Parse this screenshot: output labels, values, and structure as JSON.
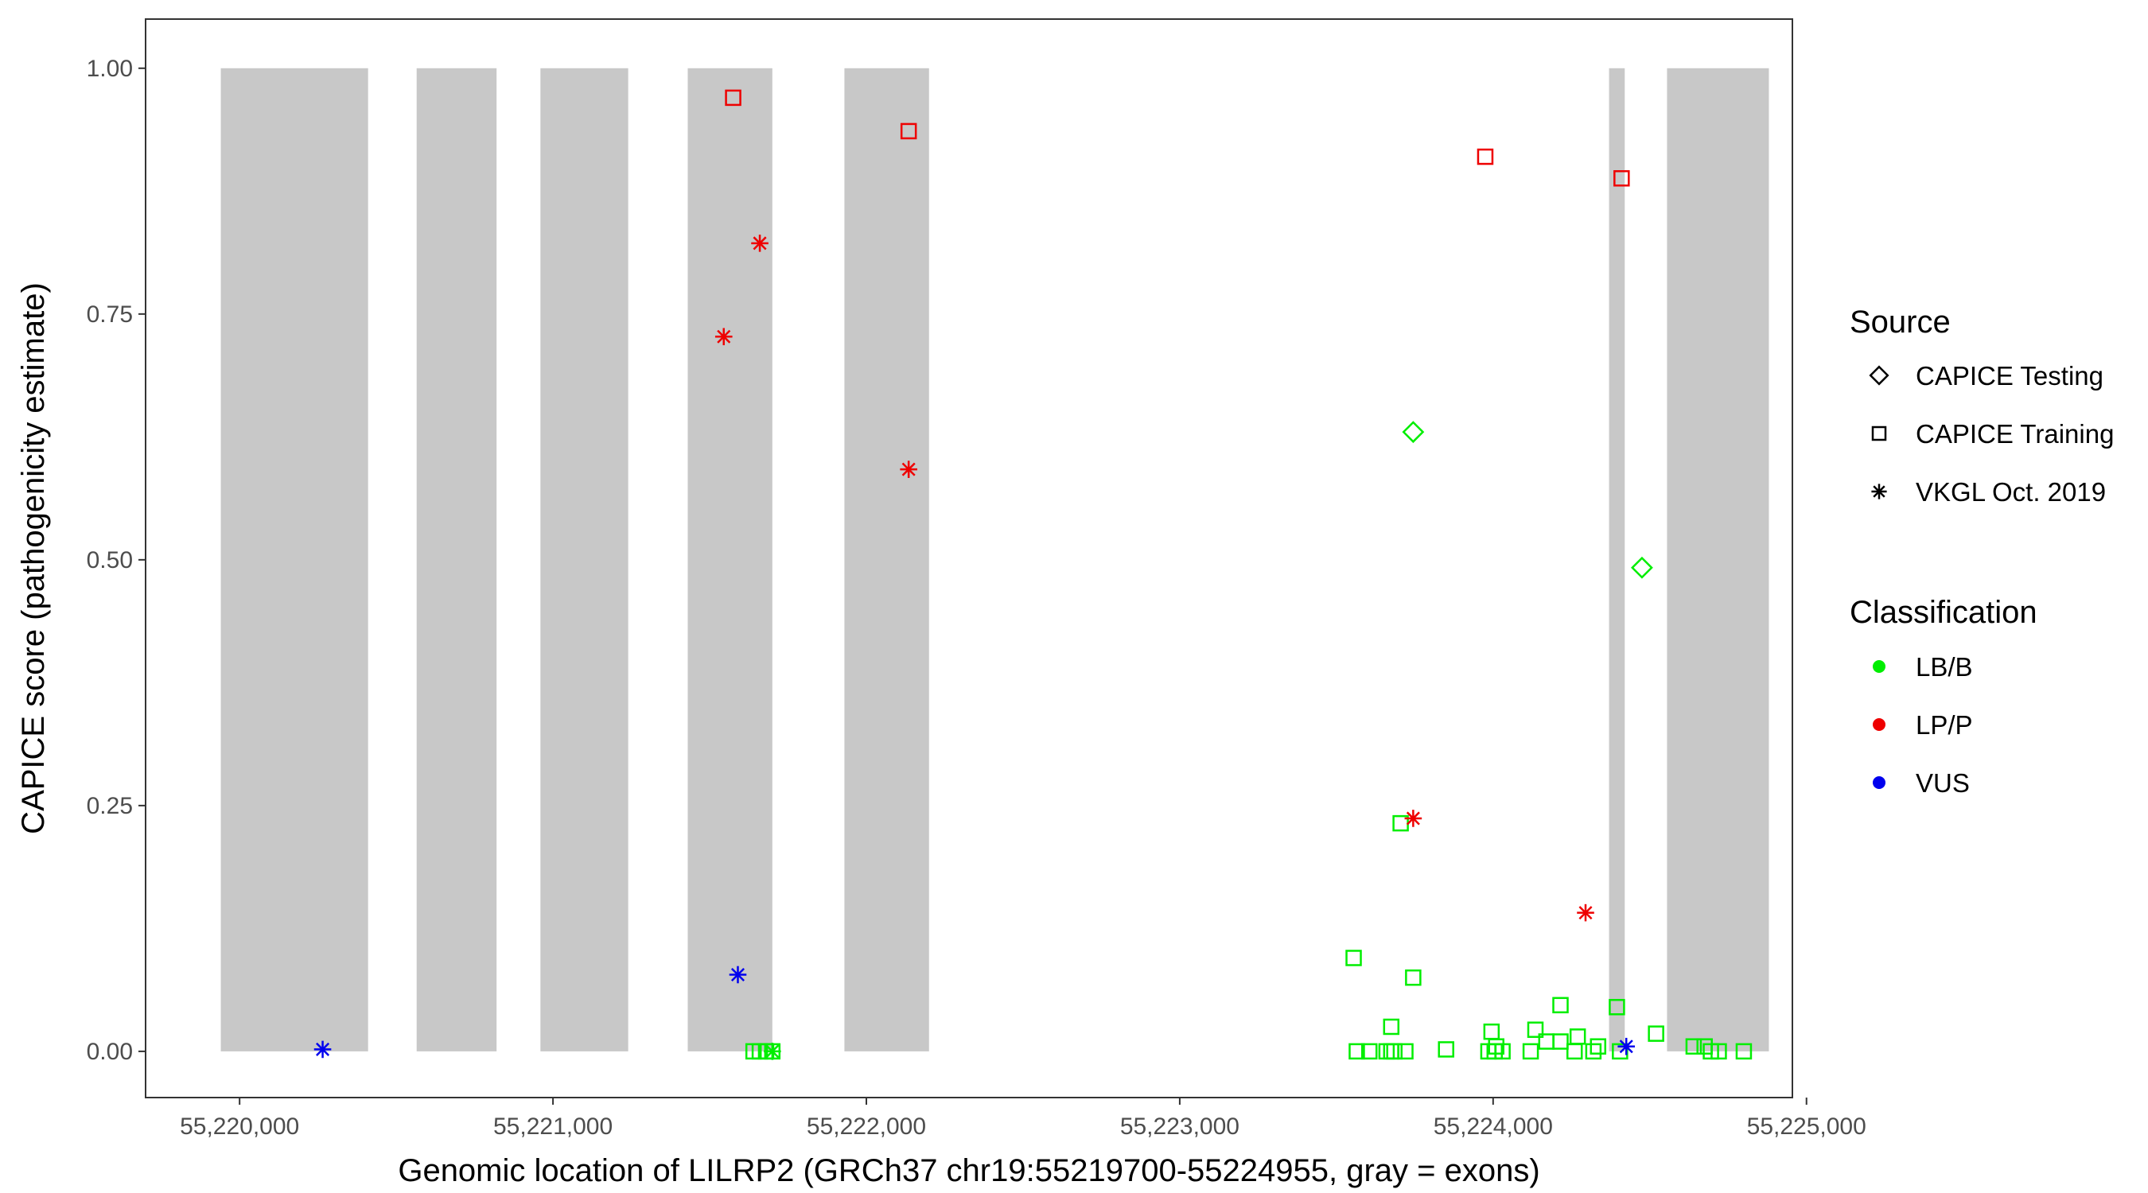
{
  "chart_data": {
    "type": "scatter",
    "xlabel": "Genomic location of LILRP2 (GRCh37 chr19:55219700-55224955, gray = exons)",
    "ylabel": "CAPICE score (pathogenicity estimate)",
    "xlim": [
      55219700,
      55224955
    ],
    "ylim": [
      -0.047,
      1.05
    ],
    "x_ticks": [
      55220000,
      55221000,
      55222000,
      55223000,
      55224000,
      55225000
    ],
    "x_tick_labels": [
      "55,220,000",
      "55,221,000",
      "55,222,000",
      "55,223,000",
      "55,224,000",
      "55,225,000"
    ],
    "y_ticks": [
      0,
      0.25,
      0.5,
      0.75,
      1.0
    ],
    "y_tick_labels": [
      "0.00",
      "0.25",
      "0.50",
      "0.75",
      "1.00"
    ],
    "grid": false,
    "exons": [
      [
        55219940,
        55220410
      ],
      [
        55220565,
        55220820
      ],
      [
        55220960,
        55221240
      ],
      [
        55221430,
        55221700
      ],
      [
        55221930,
        55222200
      ],
      [
        55224370,
        55224420
      ],
      [
        55224555,
        55224880
      ]
    ],
    "legend": {
      "position": "right",
      "source": {
        "title": "Source",
        "items": [
          {
            "label": "CAPICE Testing",
            "shape": "diamond"
          },
          {
            "label": "CAPICE Training",
            "shape": "square"
          },
          {
            "label": "VKGL Oct. 2019",
            "shape": "asterisk"
          }
        ]
      },
      "classification": {
        "title": "Classification",
        "items": [
          {
            "label": "LB/B",
            "color": "#00ee00"
          },
          {
            "label": "LP/P",
            "color": "#ee0000"
          },
          {
            "label": "VUS",
            "color": "#0000ee"
          }
        ]
      }
    },
    "colors": {
      "LB/B": "#00ee00",
      "LP/P": "#ee0000",
      "VUS": "#0000ee",
      "exon": "#c8c8c8"
    },
    "series": [
      {
        "source": "CAPICE Testing",
        "classification": "LB/B",
        "points": [
          [
            55223745,
            0.63
          ],
          [
            55224475,
            0.492
          ]
        ]
      },
      {
        "source": "CAPICE Training",
        "classification": "LP/P",
        "points": [
          [
            55221575,
            0.97
          ],
          [
            55222135,
            0.936
          ],
          [
            55223975,
            0.91
          ],
          [
            55224410,
            0.888
          ]
        ]
      },
      {
        "source": "CAPICE Training",
        "classification": "LB/B",
        "points": [
          [
            55221640,
            0.0
          ],
          [
            55221660,
            0.0
          ],
          [
            55221680,
            0.0
          ],
          [
            55221700,
            0.0
          ],
          [
            55223705,
            0.232
          ],
          [
            55223555,
            0.095
          ],
          [
            55223745,
            0.075
          ],
          [
            55223565,
            0.0
          ],
          [
            55223605,
            0.0
          ],
          [
            55223660,
            0.0
          ],
          [
            55223675,
            0.0
          ],
          [
            55223685,
            0.0
          ],
          [
            55223720,
            0.0
          ],
          [
            55223675,
            0.025
          ],
          [
            55223850,
            0.002
          ],
          [
            55223985,
            0.0
          ],
          [
            55224005,
            0.0
          ],
          [
            55224030,
            0.0
          ],
          [
            55223995,
            0.02
          ],
          [
            55224010,
            0.005
          ],
          [
            55224120,
            0.0
          ],
          [
            55224135,
            0.022
          ],
          [
            55224170,
            0.01
          ],
          [
            55224215,
            0.047
          ],
          [
            55224215,
            0.01
          ],
          [
            55224260,
            0.0
          ],
          [
            55224270,
            0.015
          ],
          [
            55224320,
            0.0
          ],
          [
            55224335,
            0.005
          ],
          [
            55224395,
            0.045
          ],
          [
            55224405,
            0.0
          ],
          [
            55224520,
            0.018
          ],
          [
            55224640,
            0.005
          ],
          [
            55224675,
            0.005
          ],
          [
            55224695,
            0.0
          ],
          [
            55224720,
            0.0
          ],
          [
            55224800,
            0.0
          ]
        ]
      },
      {
        "source": "VKGL Oct. 2019",
        "classification": "LP/P",
        "points": [
          [
            55221660,
            0.822
          ],
          [
            55221545,
            0.727
          ],
          [
            55222135,
            0.592
          ],
          [
            55223745,
            0.237
          ],
          [
            55224295,
            0.141
          ]
        ]
      },
      {
        "source": "VKGL Oct. 2019",
        "classification": "VUS",
        "points": [
          [
            55220265,
            0.002
          ],
          [
            55221590,
            0.078
          ],
          [
            55224425,
            0.005
          ]
        ]
      },
      {
        "source": "VKGL Oct. 2019",
        "classification": "LB/B",
        "points": [
          [
            55221700,
            0.0
          ]
        ]
      }
    ]
  }
}
